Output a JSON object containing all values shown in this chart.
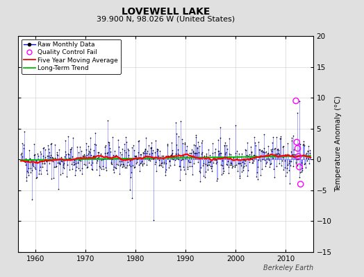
{
  "title": "LOVEWELL LAKE",
  "subtitle": "39.900 N, 98.026 W (United States)",
  "ylabel": "Temperature Anomaly (°C)",
  "watermark": "Berkeley Earth",
  "xlim": [
    1956.5,
    2015.5
  ],
  "ylim": [
    -15,
    20
  ],
  "yticks": [
    -15,
    -10,
    -5,
    0,
    5,
    10,
    15,
    20
  ],
  "xticks": [
    1960,
    1970,
    1980,
    1990,
    2000,
    2010
  ],
  "bg_color": "#e0e0e0",
  "plot_bg": "#ffffff",
  "raw_line_color": "#0000ff",
  "raw_dot_color": "#000000",
  "moving_avg_color": "#ff0000",
  "trend_color": "#00bb00",
  "qc_fail_color": "#ff00ff",
  "seed": 42
}
